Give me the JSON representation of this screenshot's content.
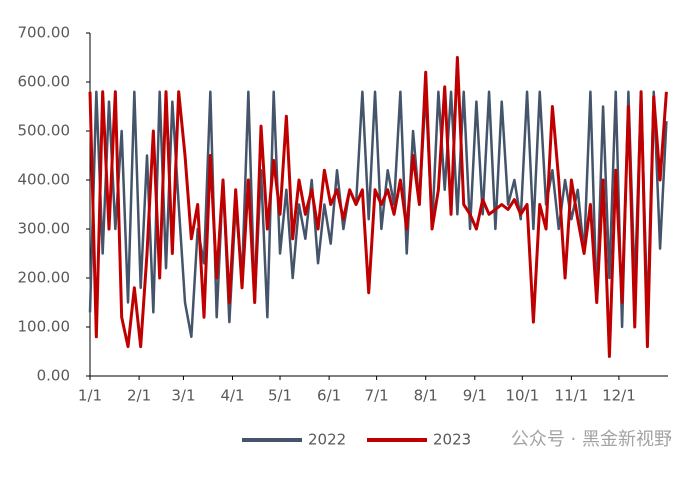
{
  "chart_data": {
    "type": "line",
    "x": [
      0,
      4,
      8,
      12,
      16,
      20,
      24,
      28,
      32,
      36,
      40,
      44,
      48,
      52,
      56,
      60,
      64,
      68,
      72,
      76,
      80,
      84,
      88,
      92,
      96,
      100,
      104,
      108,
      112,
      116,
      120,
      124,
      128,
      132,
      136,
      140,
      144,
      148,
      152,
      156,
      160,
      164,
      168,
      172,
      176,
      180,
      184,
      188,
      192,
      196,
      200,
      204,
      208,
      212,
      216,
      220,
      224,
      228,
      232,
      236,
      240,
      244,
      248,
      252,
      256,
      260,
      264,
      268,
      272,
      276,
      280,
      284,
      288,
      292,
      296,
      300,
      304,
      308,
      312,
      316,
      320,
      324,
      328,
      332,
      336,
      340,
      344,
      348,
      352,
      356,
      360,
      364
    ],
    "series": [
      {
        "name": "2022",
        "color": "#44546a",
        "values": [
          130,
          580,
          250,
          560,
          300,
          500,
          150,
          580,
          180,
          450,
          130,
          580,
          220,
          560,
          350,
          150,
          80,
          300,
          230,
          580,
          120,
          400,
          110,
          350,
          200,
          580,
          150,
          420,
          120,
          580,
          250,
          380,
          200,
          350,
          280,
          400,
          230,
          350,
          270,
          420,
          300,
          380,
          350,
          580,
          320,
          580,
          300,
          420,
          350,
          580,
          250,
          500,
          350,
          580,
          300,
          580,
          380,
          580,
          330,
          580,
          300,
          560,
          330,
          580,
          300,
          560,
          350,
          400,
          320,
          580,
          300,
          580,
          350,
          420,
          300,
          400,
          320,
          380,
          250,
          580,
          150,
          550,
          200,
          580,
          100,
          580,
          180,
          580,
          120,
          580,
          260,
          520
        ]
      },
      {
        "name": "2023",
        "color": "#c00000",
        "values": [
          580,
          80,
          580,
          300,
          580,
          120,
          60,
          180,
          60,
          250,
          500,
          200,
          580,
          250,
          580,
          450,
          280,
          350,
          120,
          450,
          200,
          400,
          150,
          380,
          180,
          400,
          150,
          510,
          300,
          440,
          330,
          530,
          280,
          400,
          330,
          380,
          300,
          420,
          350,
          380,
          320,
          380,
          350,
          380,
          170,
          380,
          350,
          380,
          330,
          400,
          300,
          450,
          350,
          620,
          300,
          380,
          590,
          330,
          650,
          350,
          330,
          300,
          360,
          330,
          340,
          350,
          340,
          360,
          330,
          350,
          110,
          350,
          300,
          550,
          400,
          200,
          400,
          320,
          250,
          350,
          150,
          400,
          40,
          420,
          150,
          550,
          100,
          580,
          60,
          570,
          400,
          580
        ]
      }
    ],
    "xlim": [
      0,
      365
    ],
    "xticks": [
      {
        "value": 0,
        "label": "1/1"
      },
      {
        "value": 31,
        "label": "2/1"
      },
      {
        "value": 59,
        "label": "3/1"
      },
      {
        "value": 90,
        "label": "4/1"
      },
      {
        "value": 120,
        "label": "5/1"
      },
      {
        "value": 151,
        "label": "6/1"
      },
      {
        "value": 181,
        "label": "7/1"
      },
      {
        "value": 212,
        "label": "8/1"
      },
      {
        "value": 243,
        "label": "9/1"
      },
      {
        "value": 273,
        "label": "10/1"
      },
      {
        "value": 304,
        "label": "11/1"
      },
      {
        "value": 334,
        "label": "12/1"
      }
    ],
    "ylim": [
      0,
      700
    ],
    "yticks": [
      {
        "value": 0,
        "label": "0.00"
      },
      {
        "value": 100,
        "label": "100.00"
      },
      {
        "value": 200,
        "label": "200.00"
      },
      {
        "value": 300,
        "label": "300.00"
      },
      {
        "value": 400,
        "label": "400.00"
      },
      {
        "value": 500,
        "label": "500.00"
      },
      {
        "value": 600,
        "label": "600.00"
      },
      {
        "value": 700,
        "label": "700.00"
      }
    ],
    "legend": "bottom",
    "watermark": "公众号 · 黑金新视野"
  }
}
